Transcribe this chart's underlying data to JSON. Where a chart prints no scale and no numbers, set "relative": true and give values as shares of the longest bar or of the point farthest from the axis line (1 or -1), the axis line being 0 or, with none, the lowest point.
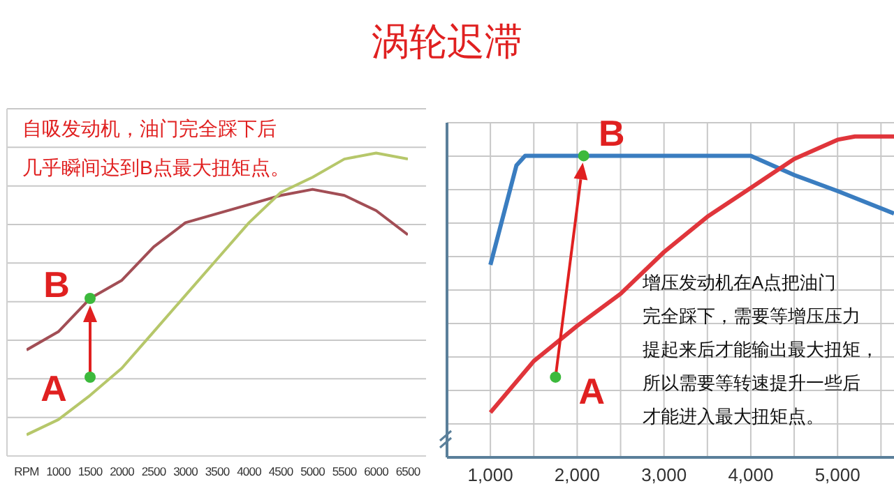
{
  "chart_data": [
    {
      "type": "line",
      "title": "涡轮迟滞",
      "categories": [
        "RPM",
        "1000",
        "1500",
        "2000",
        "2500",
        "3000",
        "3500",
        "4000",
        "4500",
        "5000",
        "5500",
        "6000",
        "6500"
      ],
      "relative": true,
      "grid": "y",
      "series": [
        {
          "color": "#a24e55",
          "values": [
            0.35,
            0.41,
            0.52,
            0.58,
            0.69,
            0.77,
            0.8,
            0.83,
            0.86,
            0.88,
            0.86,
            0.81,
            0.73
          ]
        },
        {
          "color": "#b6c76a",
          "values": [
            0.07,
            0.12,
            0.2,
            0.29,
            0.41,
            0.53,
            0.65,
            0.77,
            0.87,
            0.92,
            0.98,
            1,
            0.98
          ]
        },
        {
          "type": "scatter",
          "color": "#3cb93c",
          "values": [
            null,
            null,
            0.26,
            null,
            null,
            null,
            null,
            null,
            null,
            null,
            null,
            null,
            null
          ]
        },
        {
          "type": "scatter",
          "color": "#3cb93c",
          "values": [
            null,
            null,
            0.52,
            null,
            null,
            null,
            null,
            null,
            null,
            null,
            null,
            null,
            null
          ]
        }
      ],
      "annotations": [
        "自吸发动机，油门完全踩下后",
        "几乎瞬间达到B点最大扭矩点。",
        {
          "text": "A",
          "x": "1500",
          "y": 0.26
        },
        {
          "text": "B",
          "x": "1500",
          "y": 0.52
        }
      ]
    },
    {
      "type": "line",
      "relative": true,
      "grid": true,
      "xlim": [
        500,
        5650
      ],
      "xticks": [
        {
          "value": 1000,
          "label": "1,000"
        },
        {
          "value": 2000,
          "label": "2,000"
        },
        {
          "value": 3000,
          "label": "3,000"
        },
        {
          "value": 4000,
          "label": "4,000"
        },
        {
          "value": 5000,
          "label": "5,000"
        }
      ],
      "series": [
        {
          "color": "#3a7dc0",
          "x": [
            1000,
            1300,
            1400,
            4000,
            4500,
            5000,
            5650
          ],
          "values": [
            0.6,
            0.91,
            0.94,
            0.94,
            0.88,
            0.83,
            0.76
          ]
        },
        {
          "color": "#e0353b",
          "x": [
            1000,
            1500,
            2000,
            2500,
            3000,
            3500,
            4000,
            4500,
            5000,
            5200,
            5650
          ],
          "values": [
            0.14,
            0.3,
            0.41,
            0.51,
            0.64,
            0.75,
            0.84,
            0.93,
            0.99,
            1,
            1
          ]
        },
        {
          "type": "scatter",
          "color": "#3cb93c",
          "x": [
            1750,
            2075
          ],
          "values": [
            0.25,
            0.94
          ]
        }
      ],
      "annotations": [
        "增压发动机在A点把油门",
        "完全踩下，需要等增压压力",
        "提起来后才能输出最大扭矩，",
        "所以需要等转速提升一些后",
        "才能进入最大扭矩点。",
        {
          "text": "A",
          "x": 1750,
          "y": 0.25
        },
        {
          "text": "B",
          "x": 2075,
          "y": 0.94
        }
      ]
    }
  ]
}
